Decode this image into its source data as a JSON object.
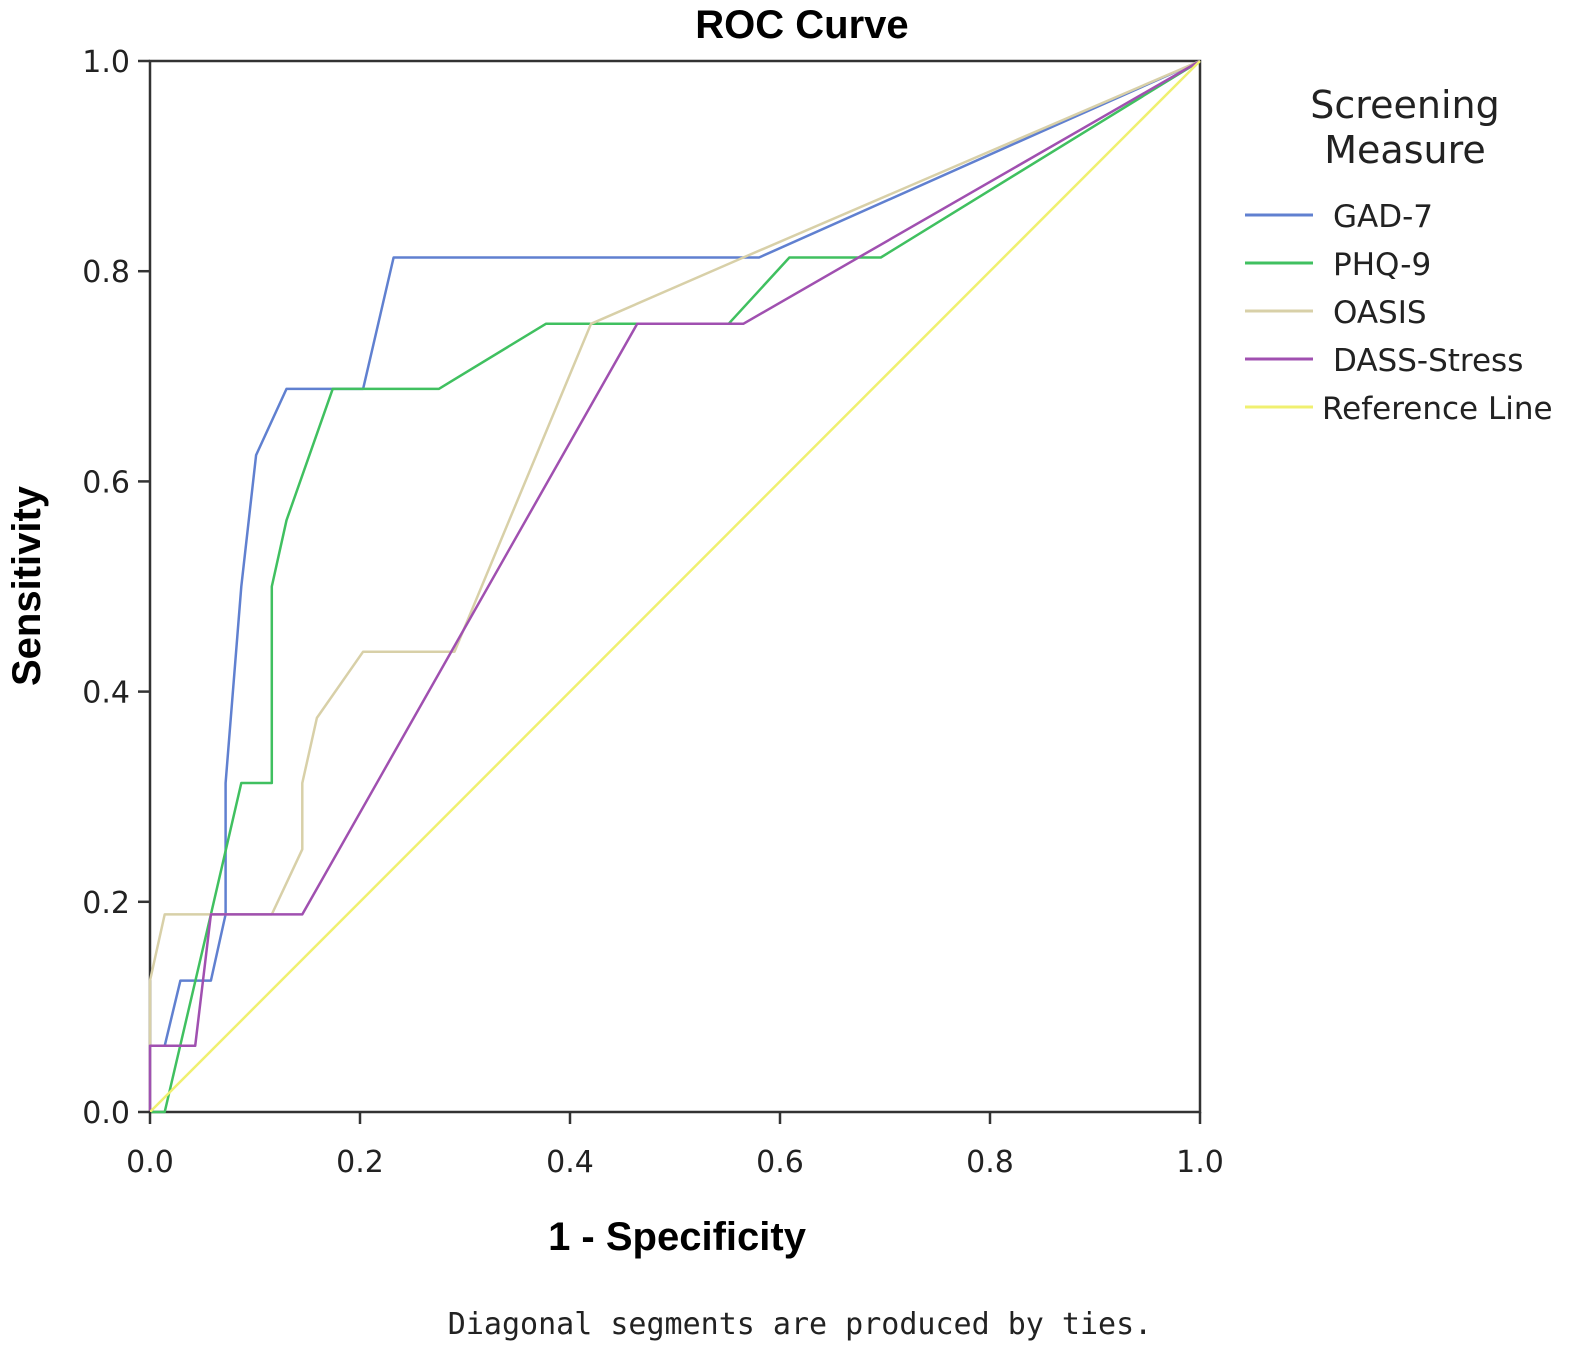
{
  "chart_data": {
    "type": "line",
    "title": "ROC Curve",
    "xlabel": "1 - Specificity",
    "ylabel": "Sensitivity",
    "xlim": [
      0,
      1
    ],
    "ylim": [
      0,
      1
    ],
    "xticks": [
      "0.0",
      "0.2",
      "0.4",
      "0.6",
      "0.8",
      "1.0"
    ],
    "yticks": [
      "0.0",
      "0.2",
      "0.4",
      "0.6",
      "0.8",
      "1.0"
    ],
    "grid": false,
    "legend": {
      "title_line1": "Screening",
      "title_line2": "Measure",
      "placement": "right"
    },
    "footnote": "Diagonal segments are produced by ties.",
    "series": [
      {
        "name": "GAD-7",
        "color": "#6080d0",
        "points": [
          [
            0,
            0
          ],
          [
            0,
            0.063
          ],
          [
            0.014,
            0.063
          ],
          [
            0.029,
            0.125
          ],
          [
            0.058,
            0.125
          ],
          [
            0.072,
            0.188
          ],
          [
            0.072,
            0.313
          ],
          [
            0.087,
            0.5
          ],
          [
            0.101,
            0.625
          ],
          [
            0.13,
            0.688
          ],
          [
            0.203,
            0.688
          ],
          [
            0.232,
            0.813
          ],
          [
            0.58,
            0.813
          ],
          [
            1,
            1
          ]
        ]
      },
      {
        "name": "PHQ-9",
        "color": "#40c060",
        "points": [
          [
            0,
            0
          ],
          [
            0.014,
            0
          ],
          [
            0.058,
            0.188
          ],
          [
            0.087,
            0.313
          ],
          [
            0.116,
            0.313
          ],
          [
            0.116,
            0.5
          ],
          [
            0.13,
            0.563
          ],
          [
            0.174,
            0.688
          ],
          [
            0.275,
            0.688
          ],
          [
            0.377,
            0.75
          ],
          [
            0.551,
            0.75
          ],
          [
            0.609,
            0.813
          ],
          [
            0.696,
            0.813
          ],
          [
            1,
            1
          ]
        ]
      },
      {
        "name": "OASIS",
        "color": "#d8d0a8",
        "points": [
          [
            0,
            0
          ],
          [
            0,
            0.125
          ],
          [
            0.014,
            0.188
          ],
          [
            0.116,
            0.188
          ],
          [
            0.145,
            0.25
          ],
          [
            0.145,
            0.313
          ],
          [
            0.159,
            0.375
          ],
          [
            0.203,
            0.438
          ],
          [
            0.29,
            0.438
          ],
          [
            0.42,
            0.75
          ],
          [
            0.565,
            0.813
          ],
          [
            1,
            1
          ]
        ]
      },
      {
        "name": "DASS-Stress",
        "color": "#a050b0",
        "points": [
          [
            0,
            0
          ],
          [
            0,
            0.063
          ],
          [
            0.043,
            0.063
          ],
          [
            0.058,
            0.188
          ],
          [
            0.145,
            0.188
          ],
          [
            0.464,
            0.75
          ],
          [
            0.565,
            0.75
          ],
          [
            1,
            1
          ]
        ]
      },
      {
        "name": "Reference Line",
        "color": "#f0f070",
        "points": [
          [
            0,
            0
          ],
          [
            1,
            1
          ]
        ]
      }
    ]
  }
}
